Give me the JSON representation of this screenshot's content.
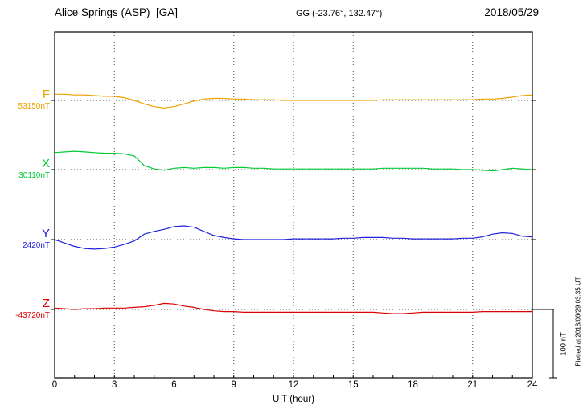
{
  "header": {
    "station_title": "Alice Springs (ASP)  [GA]",
    "gg_coords": "GG (-23.76°, 132.47°)",
    "date": "2018/05/29"
  },
  "footer": {
    "plotted_at": "Plotted at 2018/06/29 03:35 UT"
  },
  "chart_data": {
    "type": "line",
    "title": "Alice Springs (ASP) [GA] magnetogram",
    "xlabel": "U T (hour)",
    "xlim": [
      0,
      24
    ],
    "x_ticks": [
      0,
      3,
      6,
      9,
      12,
      15,
      18,
      21,
      24
    ],
    "grid_hours": [
      3,
      6,
      9,
      12,
      15,
      18,
      21
    ],
    "x_step_hours": 0.5,
    "scale_bar": {
      "label": "100 nT",
      "nT": 100
    },
    "channels": [
      {
        "name": "F",
        "baseline_label": "53150nT",
        "baseline_nT": 53150,
        "color": "#f0a000",
        "offsets_nT": [
          9,
          9,
          8,
          8,
          7,
          6,
          6,
          4,
          0,
          -5,
          -9,
          -11,
          -9,
          -5,
          -1,
          2,
          3,
          3,
          2,
          2,
          1,
          1,
          1,
          0,
          0,
          0,
          0,
          0,
          0,
          0,
          0,
          0,
          0,
          1,
          1,
          1,
          1,
          1,
          1,
          1,
          1,
          1,
          1,
          2,
          2,
          3,
          5,
          7,
          8
        ]
      },
      {
        "name": "X",
        "baseline_label": "30110nT",
        "baseline_nT": 30110,
        "color": "#00cc33",
        "offsets_nT": [
          25,
          26,
          27,
          26,
          25,
          24,
          24,
          23,
          20,
          6,
          1,
          -1,
          2,
          3,
          2,
          3,
          3,
          2,
          3,
          3,
          2,
          2,
          1,
          1,
          1,
          1,
          1,
          1,
          1,
          1,
          1,
          1,
          1,
          2,
          2,
          2,
          2,
          2,
          1,
          1,
          1,
          0,
          0,
          -1,
          -2,
          0,
          2,
          1,
          0
        ]
      },
      {
        "name": "Y",
        "baseline_label": "2420nT",
        "baseline_nT": 2420,
        "color": "#2222dd",
        "offsets_nT": [
          0,
          -5,
          -10,
          -13,
          -14,
          -13,
          -11,
          -7,
          -2,
          8,
          12,
          15,
          19,
          20,
          18,
          12,
          6,
          3,
          1,
          0,
          0,
          0,
          0,
          0,
          1,
          1,
          1,
          1,
          1,
          2,
          2,
          3,
          3,
          3,
          2,
          2,
          1,
          1,
          1,
          1,
          1,
          2,
          2,
          4,
          8,
          10,
          9,
          5,
          4
        ]
      },
      {
        "name": "Z",
        "baseline_label": "-43720nT",
        "baseline_nT": -43720,
        "color": "#dd0000",
        "offsets_nT": [
          2,
          1,
          0,
          1,
          1,
          2,
          2,
          2,
          3,
          4,
          6,
          9,
          8,
          5,
          3,
          0,
          -2,
          -3,
          -3,
          -4,
          -4,
          -4,
          -4,
          -4,
          -4,
          -4,
          -4,
          -4,
          -4,
          -4,
          -4,
          -4,
          -4,
          -5,
          -6,
          -6,
          -5,
          -4,
          -4,
          -4,
          -4,
          -4,
          -4,
          -3,
          -3,
          -3,
          -3,
          -3,
          -3
        ]
      }
    ]
  }
}
